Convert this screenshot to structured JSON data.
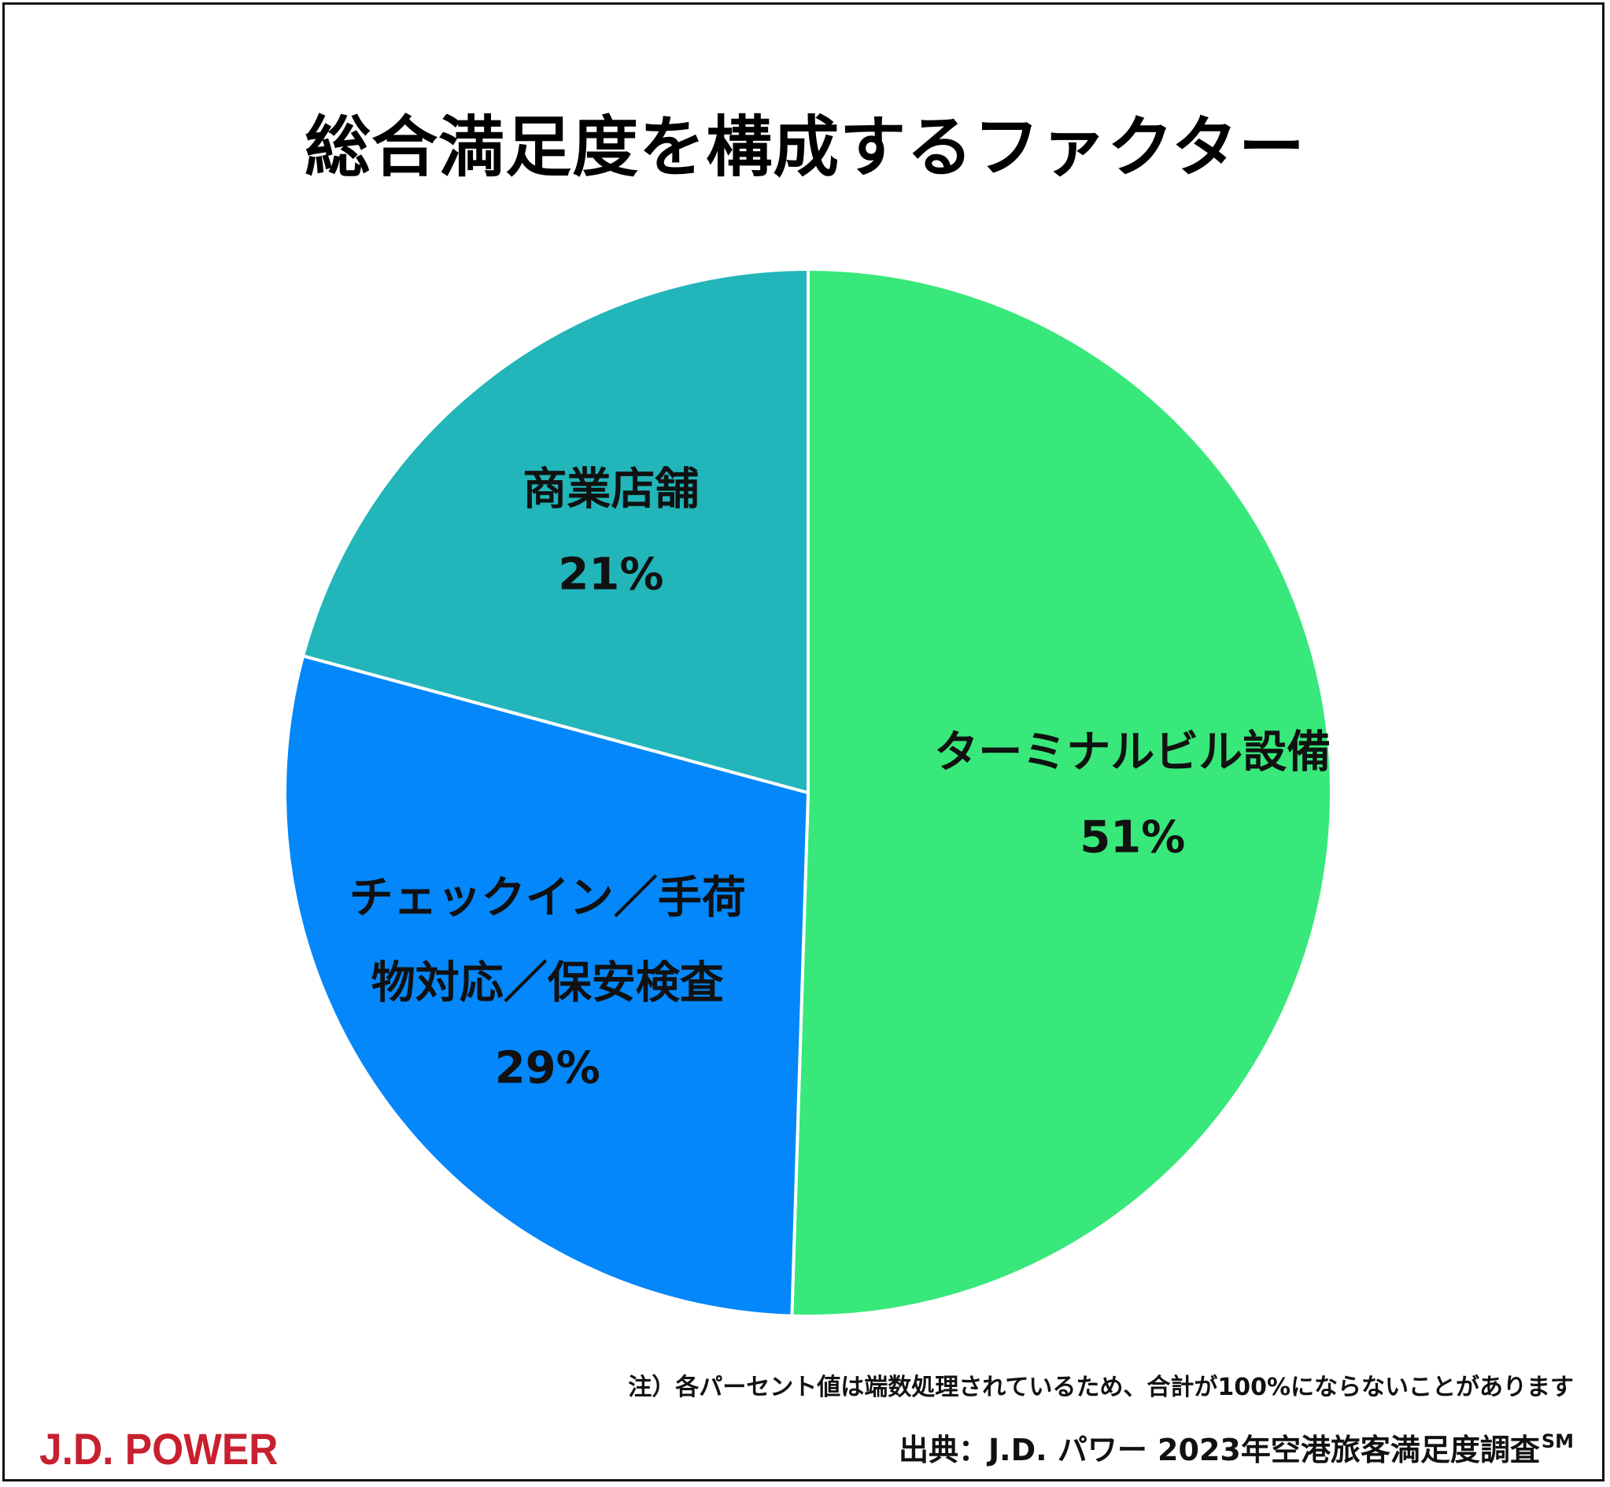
{
  "title": "総合満足度を構成するファクター",
  "chart_data": {
    "type": "pie",
    "title": "総合満足度を構成するファクター",
    "start_angle_deg": 0,
    "direction": "clockwise",
    "slices": [
      {
        "label_lines": [
          "ターミナルビル設備"
        ],
        "value": 51,
        "value_label": "51%",
        "color": "#38e87a"
      },
      {
        "label_lines": [
          "チェックイン／手荷",
          "物対応／保安検査"
        ],
        "value": 29,
        "value_label": "29%",
        "color": "#0387fa"
      },
      {
        "label_lines": [
          "商業店舗"
        ],
        "value": 21,
        "value_label": "21%",
        "color": "#22b5b9"
      }
    ],
    "slice_border_color": "#ffffff"
  },
  "note": "注）各パーセント値は端数処理されているため、合計が100%にならないことがあります",
  "source": {
    "text": "出典：J.D. パワー 2023年空港旅客満足度調査",
    "mark": "SM"
  },
  "logo": "J.D. POWER"
}
